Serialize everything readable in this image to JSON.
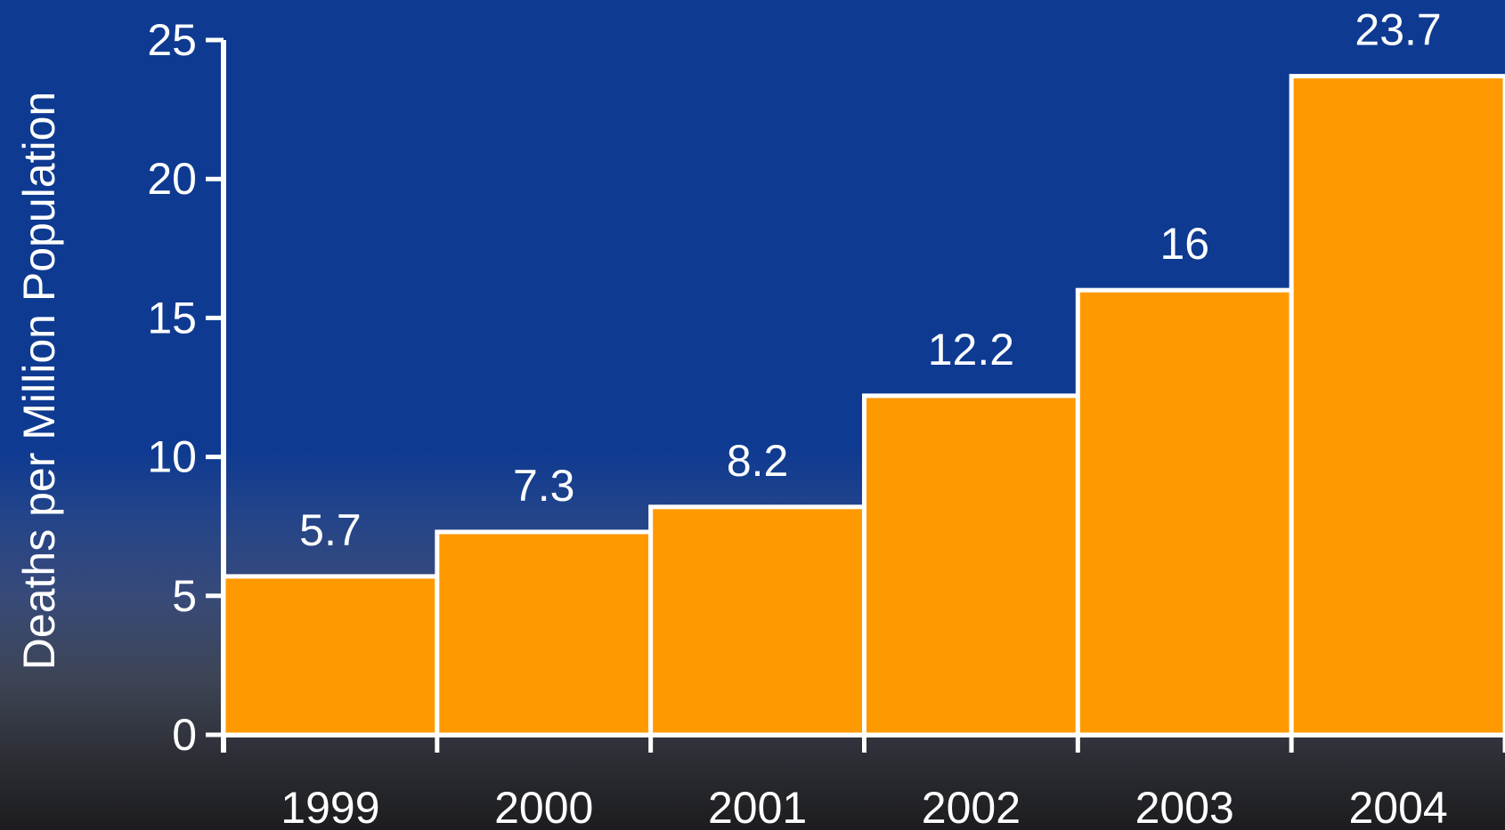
{
  "chart_data": {
    "type": "bar",
    "title": "",
    "xlabel": "",
    "ylabel": "Deaths per Million Population",
    "categories": [
      "1999",
      "2000",
      "2001",
      "2002",
      "2003",
      "2004"
    ],
    "values": [
      5.7,
      7.3,
      8.2,
      12.2,
      16,
      23.7
    ],
    "value_labels": [
      "5.7",
      "7.3",
      "8.2",
      "12.2",
      "16",
      "23.7"
    ],
    "yticks": [
      "0",
      "5",
      "10",
      "15",
      "20",
      "25"
    ],
    "ylim": [
      0,
      25
    ],
    "grid": false,
    "legend": "none",
    "colors": {
      "bar": "#ff9900",
      "outline": "#ffffff",
      "text": "#ffffff",
      "background_top": "#0e3a91",
      "background_bottom": "#1c1c1f"
    }
  }
}
